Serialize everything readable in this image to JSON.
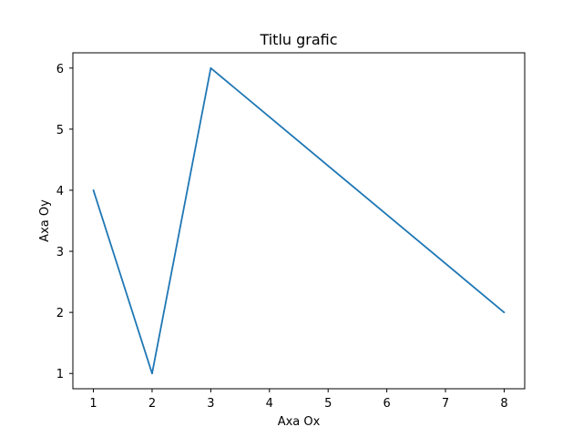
{
  "chart_data": {
    "type": "line",
    "title": "Titlu grafic",
    "xlabel": "Axa Ox",
    "ylabel": "Axa Oy",
    "xlim": [
      0.65,
      8.35
    ],
    "ylim": [
      0.75,
      6.25
    ],
    "xticks": [
      1,
      2,
      3,
      4,
      5,
      6,
      7,
      8
    ],
    "yticks": [
      1,
      2,
      3,
      4,
      5,
      6
    ],
    "grid": false,
    "series": [
      {
        "x": [
          1,
          2,
          3,
          8
        ],
        "y": [
          4,
          1,
          6,
          2
        ],
        "color": "#1f77b4"
      }
    ]
  }
}
